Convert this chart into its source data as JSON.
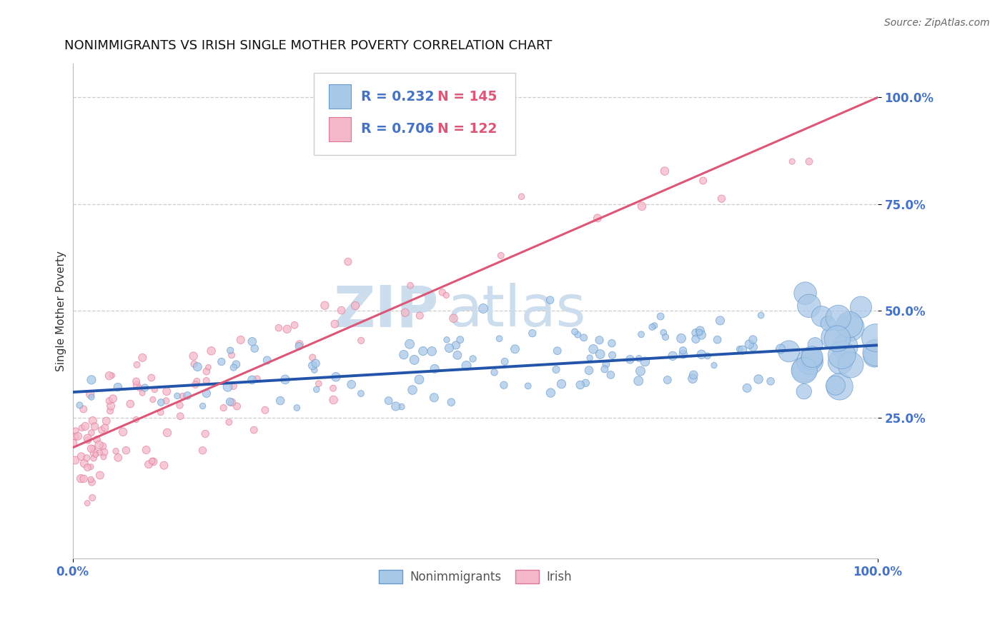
{
  "title": "NONIMMIGRANTS VS IRISH SINGLE MOTHER POVERTY CORRELATION CHART",
  "source": "Source: ZipAtlas.com",
  "ylabel": "Single Mother Poverty",
  "watermark_zip": "ZIP",
  "watermark_atlas": "atlas",
  "series": [
    {
      "name": "Nonimmigrants",
      "color": "#a8c8e8",
      "edge_color": "#6699cc",
      "line_color": "#2255aa",
      "R": 0.232,
      "N": 145
    },
    {
      "name": "Irish",
      "color": "#f5b8c8",
      "edge_color": "#dd7799",
      "line_color": "#dd5577",
      "R": 0.706,
      "N": 122
    }
  ],
  "xlim": [
    0,
    1
  ],
  "ylim": [
    -0.08,
    1.08
  ],
  "yticks": [
    0.25,
    0.5,
    0.75,
    1.0
  ],
  "ytick_labels": [
    "25.0%",
    "50.0%",
    "75.0%",
    "100.0%"
  ],
  "xtick_labels": [
    "0.0%",
    "100.0%"
  ],
  "background_color": "#ffffff",
  "grid_color": "#cccccc",
  "title_fontsize": 13,
  "axis_label_fontsize": 11,
  "tick_fontsize": 12,
  "source_fontsize": 10,
  "watermark_fontsize_zip": 58,
  "watermark_fontsize_atlas": 58,
  "watermark_color": "#ccdded",
  "r_text_color": "#4472c4",
  "n_text_color": "#dd5577",
  "legend_box_color": "#e8e8f8",
  "blue_line_start_y": 0.31,
  "blue_line_end_y": 0.42,
  "pink_line_start_y": 0.18,
  "pink_line_end_y": 1.0
}
